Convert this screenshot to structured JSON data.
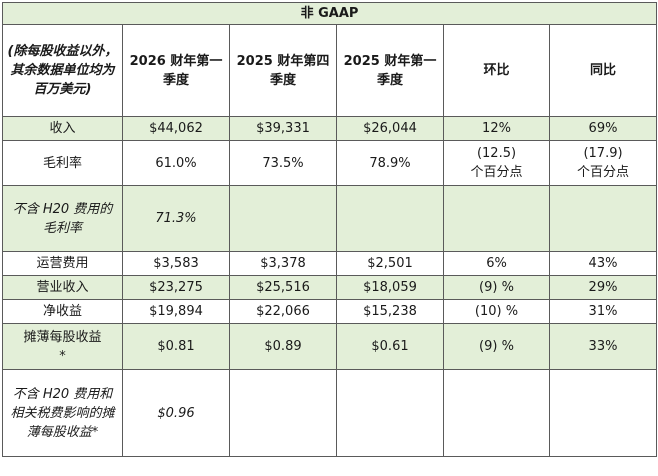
{
  "table": {
    "title": "非 GAAP",
    "headers": [
      "(除每股收益以外，其余数据单位均为百万美元)",
      "2026 财年第一季度",
      "2025 财年第四季度",
      "2025 财年第一季度",
      "环比",
      "同比"
    ],
    "rows": [
      {
        "label": "收入",
        "values": [
          "$44,062",
          "$39,331",
          "$26,044",
          "12%",
          "69%"
        ]
      },
      {
        "label": "毛利率",
        "values": [
          "61.0%",
          "73.5%",
          "78.9%",
          "(12.5)\n个百分点",
          "(17.9)\n个百分点"
        ]
      },
      {
        "label": "不含 H20 费用的毛利率",
        "values": [
          "71.3%",
          "",
          "",
          "",
          ""
        ]
      },
      {
        "label": "运营费用",
        "values": [
          "$3,583",
          "$3,378",
          "$2,501",
          "6%",
          "43%"
        ]
      },
      {
        "label": "营业收入",
        "values": [
          "$23,275",
          "$25,516",
          "$18,059",
          "(9) %",
          "29%"
        ]
      },
      {
        "label": "净收益",
        "values": [
          "$19,894",
          "$22,066",
          "$15,238",
          "(10) %",
          "31%"
        ]
      },
      {
        "label": "摊薄每股收益\n*",
        "values": [
          "$0.81",
          "$0.89",
          "$0.61",
          "(9) %",
          "33%"
        ]
      },
      {
        "label": "不含 H20 费用和相关税费影响的摊薄每股收益*",
        "values": [
          "$0.96",
          "",
          "",
          "",
          ""
        ]
      }
    ]
  }
}
